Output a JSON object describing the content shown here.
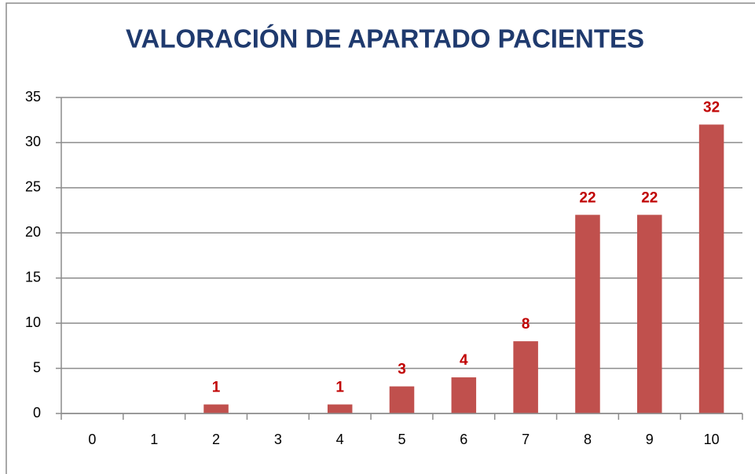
{
  "chart_data": {
    "type": "bar",
    "title": "VALORACIÓN  DE APARTADO  PACIENTES",
    "categories": [
      "0",
      "1",
      "2",
      "3",
      "4",
      "5",
      "6",
      "7",
      "8",
      "9",
      "10"
    ],
    "values": [
      0,
      0,
      1,
      0,
      1,
      3,
      4,
      8,
      22,
      22,
      32
    ],
    "color": "#c0504d",
    "label_color": "#c00000",
    "ylim": [
      0,
      35
    ],
    "yticks": [
      0,
      5,
      10,
      15,
      20,
      25,
      30,
      35
    ],
    "grid": true
  }
}
